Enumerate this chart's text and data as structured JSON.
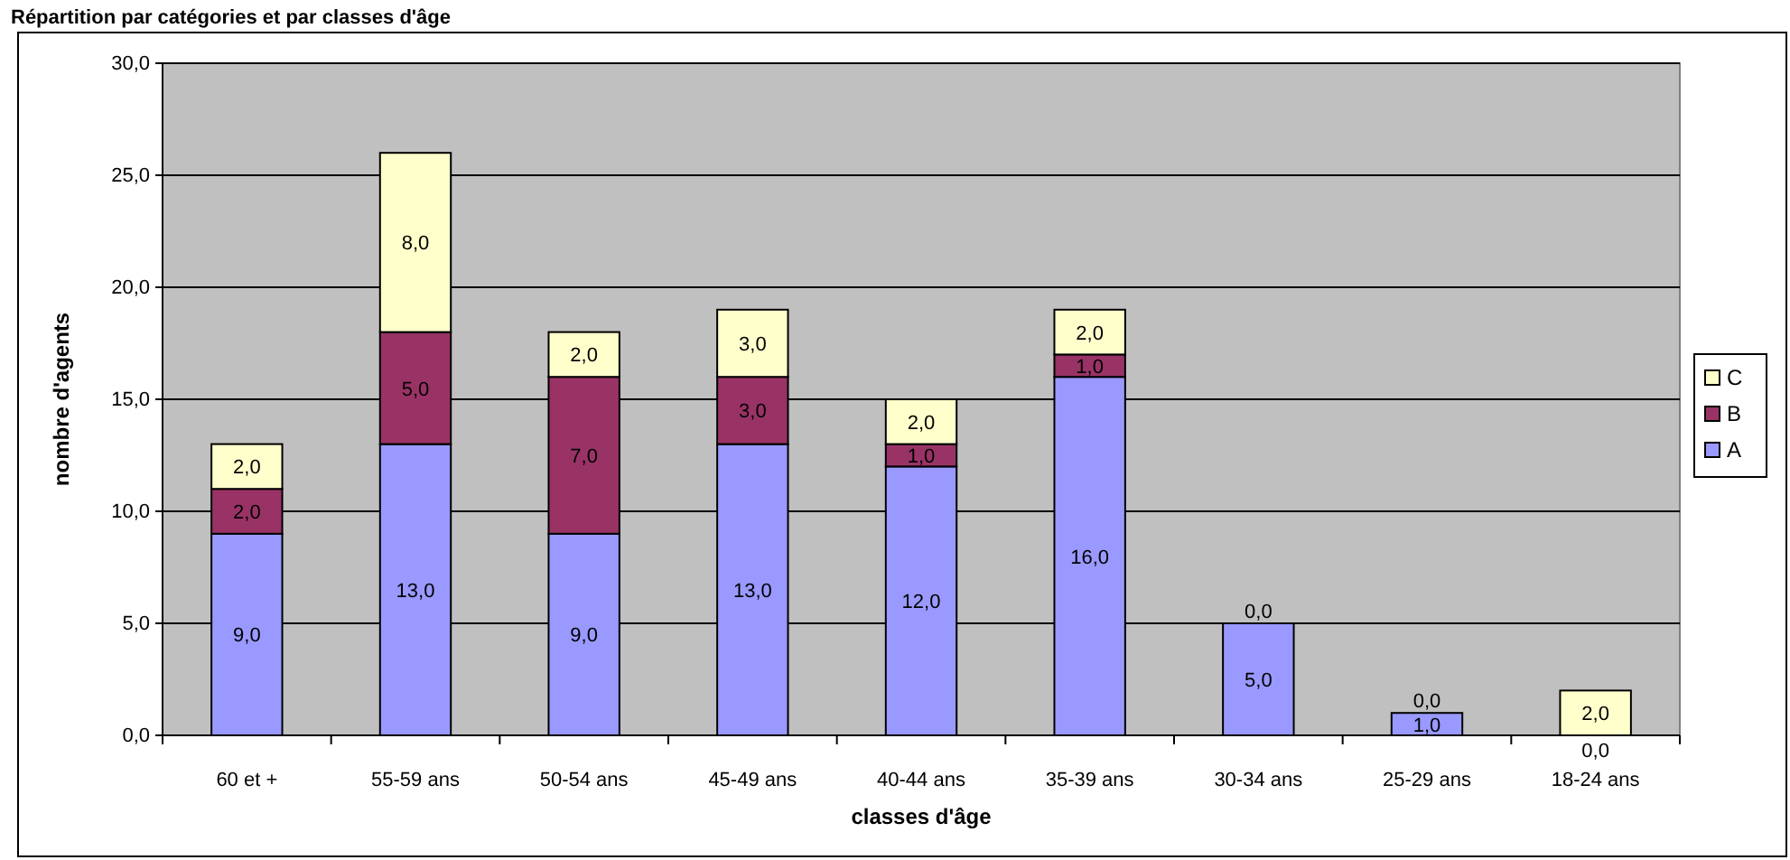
{
  "chart_data": {
    "type": "bar",
    "title": "Répartition par catégories et par classes d'âge",
    "xlabel": "classes d'âge",
    "ylabel": "nombre d'agents",
    "categories": [
      "60 et +",
      "55-59 ans",
      "50-54 ans",
      "45-49 ans",
      "40-44 ans",
      "35-39 ans",
      "30-34 ans",
      "25-29 ans",
      "18-24 ans"
    ],
    "stacked": true,
    "grid": "y",
    "legend": "right",
    "ylim": [
      0,
      30
    ],
    "yticks": [
      {
        "value": 0,
        "label": "0,0"
      },
      {
        "value": 5,
        "label": "5,0"
      },
      {
        "value": 10,
        "label": "10,0"
      },
      {
        "value": 15,
        "label": "15,0"
      },
      {
        "value": 20,
        "label": "20,0"
      },
      {
        "value": 25,
        "label": "25,0"
      },
      {
        "value": 30,
        "label": "30,0"
      }
    ],
    "series": [
      {
        "name": "A",
        "color": "#9999ff",
        "values": [
          9,
          13,
          9,
          13,
          12,
          16,
          5,
          1,
          0
        ],
        "value_labels": [
          "9,0",
          "13,0",
          "9,0",
          "13,0",
          "12,0",
          "16,0",
          "5,0",
          "1,0",
          "0,0"
        ]
      },
      {
        "name": "B",
        "color": "#993366",
        "values": [
          2,
          5,
          7,
          3,
          1,
          1,
          0,
          0,
          0
        ],
        "value_labels": [
          "2,0",
          "5,0",
          "7,0",
          "3,0",
          "1,0",
          "1,0",
          null,
          null,
          null
        ]
      },
      {
        "name": "C",
        "color": "#ffffcc",
        "values": [
          2,
          8,
          2,
          3,
          2,
          2,
          0,
          0,
          2
        ],
        "value_labels": [
          "2,0",
          "8,0",
          "2,0",
          "3,0",
          "2,0",
          "2,0",
          "0,0",
          "0,0",
          "2,0"
        ]
      }
    ]
  }
}
